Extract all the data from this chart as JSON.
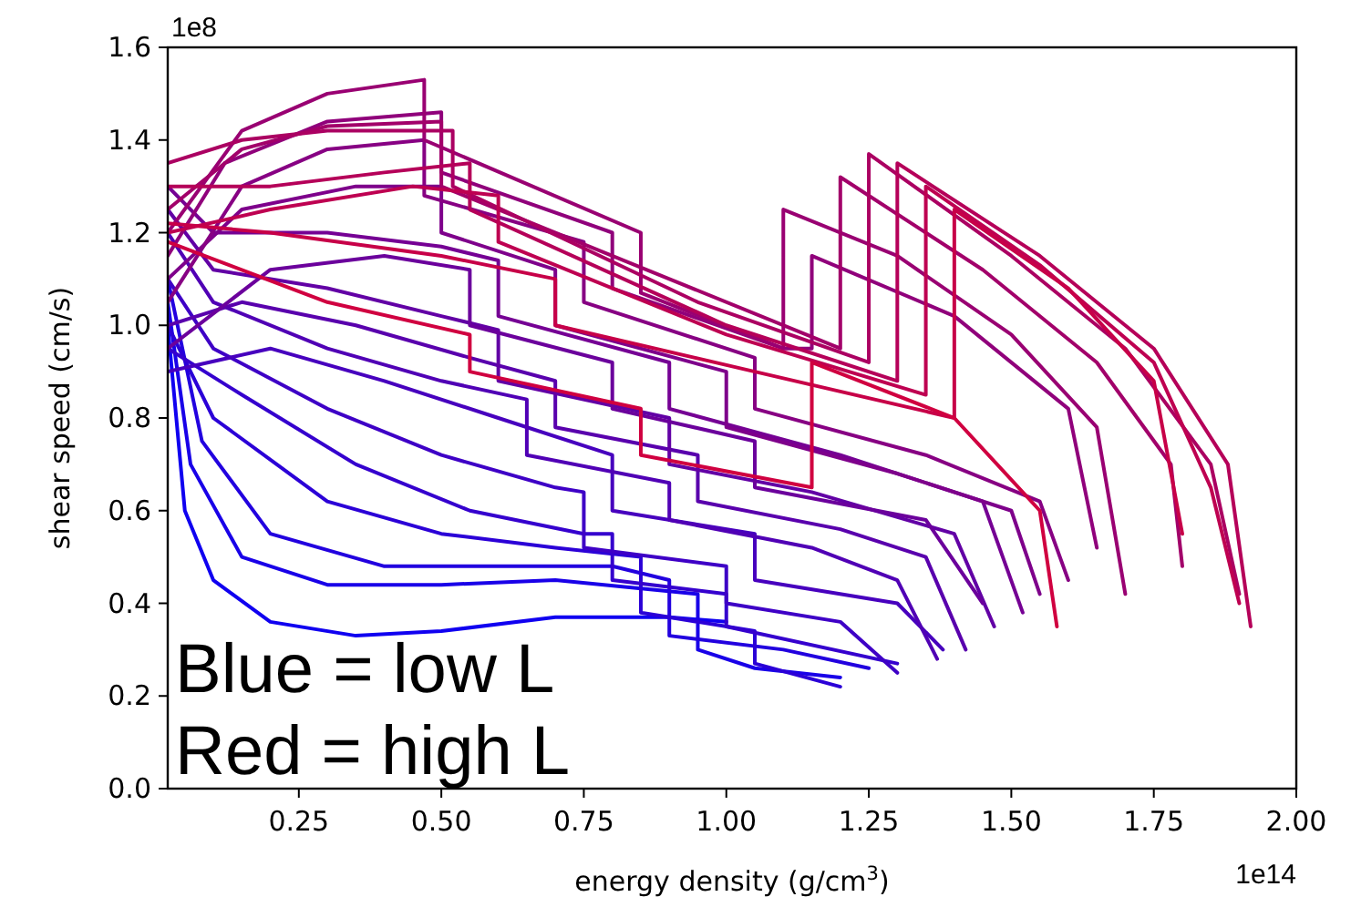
{
  "chart_data": {
    "type": "line",
    "xlabel": "energy density (g/cm$^{3}$)",
    "ylabel": "shear speed (cm/s)",
    "xlim": [
      0.02,
      2.0
    ],
    "xticks": [
      0.25,
      {
        "value": 0.5,
        "label": "0.50"
      },
      0.75,
      {
        "value": 1,
        "label": "1.00"
      },
      1.25,
      {
        "value": 1.5,
        "label": "1.50"
      },
      1.75,
      {
        "value": 2,
        "label": "2.00"
      }
    ],
    "ylim": [
      0,
      1.6
    ],
    "yticks": [
      {
        "value": 0,
        "label": "0.0"
      },
      0.2,
      0.4,
      0.6,
      0.8,
      {
        "value": 1,
        "label": "1.0"
      },
      1.2,
      1.4,
      1.6
    ],
    "grid": false,
    "line_style": "solid",
    "marker": "none",
    "annotations": [
      "1e8",
      "1e14",
      "Blue = low L",
      "Red = high L"
    ],
    "series": [
      {
        "color": "#1000f0",
        "x": [
          0.02,
          0.05,
          0.1,
          0.2,
          0.35,
          0.5,
          0.7,
          0.9,
          1.0
        ],
        "values": [
          1.0,
          0.6,
          0.45,
          0.36,
          0.33,
          0.34,
          0.37,
          0.37,
          0.36
        ]
      },
      {
        "color": "#1900e8",
        "x": [
          0.02,
          0.06,
          0.15,
          0.3,
          0.5,
          0.7,
          0.95,
          0.95,
          1.05,
          1.2
        ],
        "values": [
          1.05,
          0.7,
          0.5,
          0.44,
          0.44,
          0.45,
          0.42,
          0.3,
          0.26,
          0.24
        ]
      },
      {
        "color": "#2200df",
        "x": [
          0.02,
          0.08,
          0.2,
          0.4,
          0.6,
          0.8,
          0.9,
          0.9,
          1.1,
          1.25
        ],
        "values": [
          1.1,
          0.75,
          0.55,
          0.48,
          0.48,
          0.48,
          0.45,
          0.33,
          0.3,
          0.26
        ]
      },
      {
        "color": "#2b00d7",
        "x": [
          0.02,
          0.1,
          0.3,
          0.5,
          0.7,
          0.85,
          0.85,
          1.05,
          1.05,
          1.2
        ],
        "values": [
          1.0,
          0.8,
          0.62,
          0.55,
          0.52,
          0.5,
          0.38,
          0.34,
          0.27,
          0.22
        ]
      },
      {
        "color": "#3500ce",
        "x": [
          0.02,
          0.15,
          0.35,
          0.55,
          0.75,
          0.8,
          0.8,
          1.0,
          1.0,
          1.3
        ],
        "values": [
          0.95,
          0.85,
          0.7,
          0.6,
          0.55,
          0.55,
          0.45,
          0.42,
          0.35,
          0.27
        ]
      },
      {
        "color": "#3e00c6",
        "x": [
          0.02,
          0.1,
          0.3,
          0.5,
          0.7,
          0.75,
          0.75,
          1.0,
          1.0,
          1.2,
          1.3
        ],
        "values": [
          1.1,
          0.95,
          0.82,
          0.72,
          0.65,
          0.64,
          0.52,
          0.48,
          0.4,
          0.36,
          0.25
        ]
      },
      {
        "color": "#4700be",
        "x": [
          0.02,
          0.2,
          0.4,
          0.6,
          0.8,
          0.8,
          1.05,
          1.05,
          1.3,
          1.38
        ],
        "values": [
          0.9,
          0.95,
          0.88,
          0.8,
          0.72,
          0.6,
          0.55,
          0.45,
          0.4,
          0.3
        ]
      },
      {
        "color": "#5000b5",
        "x": [
          0.02,
          0.1,
          0.3,
          0.5,
          0.65,
          0.65,
          0.9,
          0.9,
          1.15,
          1.3,
          1.37
        ],
        "values": [
          1.2,
          1.05,
          0.95,
          0.88,
          0.84,
          0.72,
          0.66,
          0.58,
          0.52,
          0.45,
          0.28
        ]
      },
      {
        "color": "#5900ad",
        "x": [
          0.02,
          0.15,
          0.35,
          0.55,
          0.7,
          0.7,
          0.95,
          0.95,
          1.2,
          1.35,
          1.42
        ],
        "values": [
          1.0,
          1.05,
          1.0,
          0.93,
          0.88,
          0.78,
          0.72,
          0.62,
          0.56,
          0.5,
          0.3
        ]
      },
      {
        "color": "#6200a5",
        "x": [
          0.02,
          0.1,
          0.3,
          0.5,
          0.6,
          0.6,
          0.9,
          0.9,
          1.15,
          1.4,
          1.47
        ],
        "values": [
          1.25,
          1.12,
          1.08,
          1.02,
          0.99,
          0.88,
          0.8,
          0.7,
          0.64,
          0.55,
          0.35
        ]
      },
      {
        "color": "#6b009c",
        "x": [
          0.02,
          0.2,
          0.4,
          0.55,
          0.55,
          0.8,
          0.8,
          1.05,
          1.05,
          1.35,
          1.45
        ],
        "values": [
          0.95,
          1.12,
          1.15,
          1.12,
          1.0,
          0.92,
          0.82,
          0.75,
          0.65,
          0.58,
          0.4
        ]
      },
      {
        "color": "#750094",
        "x": [
          0.02,
          0.1,
          0.3,
          0.5,
          0.6,
          0.6,
          0.9,
          0.9,
          1.2,
          1.45,
          1.52
        ],
        "values": [
          1.3,
          1.2,
          1.2,
          1.17,
          1.14,
          1.02,
          0.92,
          0.82,
          0.72,
          0.62,
          0.38
        ]
      },
      {
        "color": "#7e008b",
        "x": [
          0.02,
          0.15,
          0.35,
          0.5,
          0.5,
          0.7,
          0.7,
          1.0,
          1.0,
          1.3,
          1.5,
          1.55
        ],
        "values": [
          1.1,
          1.25,
          1.3,
          1.3,
          1.2,
          1.12,
          1.0,
          0.9,
          0.78,
          0.68,
          0.6,
          0.42
        ]
      },
      {
        "color": "#870083",
        "x": [
          0.02,
          0.15,
          0.3,
          0.47,
          0.47,
          0.75,
          0.75,
          1.05,
          1.05,
          1.35,
          1.55,
          1.6
        ],
        "values": [
          1.05,
          1.3,
          1.38,
          1.4,
          1.28,
          1.18,
          1.05,
          0.93,
          0.82,
          0.72,
          0.62,
          0.45
        ]
      },
      {
        "color": "#90007b",
        "x": [
          0.02,
          0.12,
          0.3,
          0.5,
          0.5,
          0.8,
          0.8,
          1.1,
          1.15,
          1.15,
          1.4,
          1.6,
          1.65
        ],
        "values": [
          1.15,
          1.35,
          1.44,
          1.46,
          1.33,
          1.2,
          1.08,
          0.95,
          0.95,
          1.15,
          1.02,
          0.82,
          0.52
        ]
      },
      {
        "color": "#990072",
        "x": [
          0.02,
          0.15,
          0.3,
          0.47,
          0.47,
          0.85,
          0.85,
          1.1,
          1.1,
          1.3,
          1.5,
          1.65,
          1.7
        ],
        "values": [
          1.2,
          1.42,
          1.5,
          1.53,
          1.4,
          1.2,
          1.07,
          0.95,
          1.25,
          1.15,
          0.98,
          0.78,
          0.42
        ]
      },
      {
        "color": "#a2006a",
        "x": [
          0.02,
          0.15,
          0.3,
          0.5,
          0.5,
          0.9,
          1.2,
          1.2,
          1.45,
          1.65,
          1.78,
          1.8
        ],
        "values": [
          1.25,
          1.38,
          1.43,
          1.44,
          1.3,
          1.1,
          0.95,
          1.32,
          1.12,
          0.92,
          0.7,
          0.48
        ]
      },
      {
        "color": "#ab0062",
        "x": [
          0.02,
          0.15,
          0.3,
          0.52,
          0.52,
          0.95,
          1.25,
          1.25,
          1.5,
          1.7,
          1.85,
          1.9
        ],
        "values": [
          1.35,
          1.4,
          1.42,
          1.42,
          1.3,
          1.05,
          0.92,
          1.37,
          1.15,
          0.95,
          0.7,
          0.42
        ]
      },
      {
        "color": "#b50059",
        "x": [
          0.02,
          0.2,
          0.4,
          0.55,
          0.55,
          1.0,
          1.3,
          1.3,
          1.55,
          1.75,
          1.88,
          1.92
        ],
        "values": [
          1.3,
          1.3,
          1.33,
          1.35,
          1.25,
          1.0,
          0.88,
          1.35,
          1.15,
          0.95,
          0.7,
          0.35
        ]
      },
      {
        "color": "#be0051",
        "x": [
          0.02,
          0.2,
          0.45,
          0.6,
          0.6,
          1.0,
          1.35,
          1.35,
          1.55,
          1.75,
          1.85,
          1.9
        ],
        "values": [
          1.2,
          1.25,
          1.3,
          1.28,
          1.18,
          0.98,
          0.85,
          1.3,
          1.13,
          0.92,
          0.65,
          0.4
        ]
      },
      {
        "color": "#c70048",
        "x": [
          0.02,
          0.2,
          0.5,
          0.7,
          0.7,
          1.05,
          1.4,
          1.4,
          1.6,
          1.75,
          1.8
        ],
        "values": [
          1.22,
          1.2,
          1.15,
          1.1,
          1.0,
          0.9,
          0.8,
          1.25,
          1.08,
          0.88,
          0.55
        ]
      },
      {
        "color": "#d00040",
        "x": [
          0.02,
          0.3,
          0.55,
          0.55,
          0.85,
          0.85,
          1.15,
          1.15,
          1.4,
          1.55,
          1.58
        ],
        "values": [
          1.18,
          1.05,
          0.98,
          0.9,
          0.82,
          0.72,
          0.65,
          0.92,
          0.8,
          0.6,
          0.35
        ]
      }
    ]
  }
}
